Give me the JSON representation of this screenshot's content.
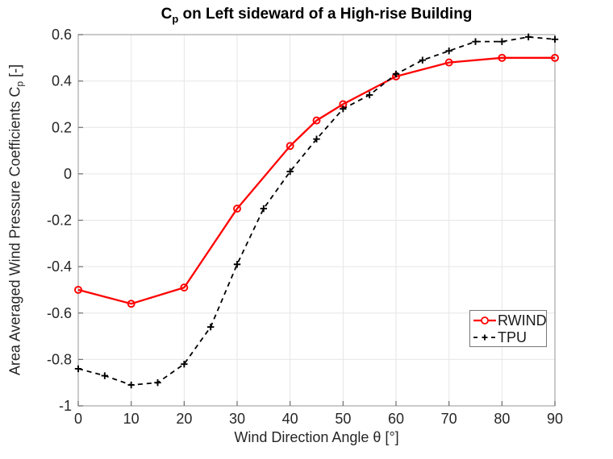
{
  "figure": {
    "title": {
      "prefix": "C",
      "sub": "p",
      "rest": " on Left sideward of a High-rise Building"
    },
    "xlabel": "Wind Direction Angle θ [°]",
    "ylabel": {
      "prefix": "Area Averaged Wind Pressure Coefficients C",
      "sub": "p",
      "suffix": " [-]"
    }
  },
  "chart_data": {
    "type": "line",
    "title": "C_p on Left sideward of a High-rise Building",
    "xlabel": "Wind Direction Angle θ [°]",
    "ylabel": "Area Averaged Wind Pressure Coefficients C_p [-]",
    "xlim": [
      0,
      90
    ],
    "ylim": [
      -1,
      0.6
    ],
    "xticks": [
      0,
      10,
      20,
      30,
      40,
      50,
      60,
      70,
      80,
      90
    ],
    "xtick_labels": [
      "0",
      "10",
      "20",
      "30",
      "40",
      "50",
      "60",
      "70",
      "80",
      "90"
    ],
    "yticks": [
      0.6,
      0.4,
      0.2,
      0,
      -0.2,
      -0.4,
      -0.6,
      -0.8,
      -1
    ],
    "ytick_labels": [
      "0.6",
      "0.4",
      "0.2",
      "0",
      "-0.2",
      "-0.4",
      "-0.6",
      "-0.8",
      "-1"
    ],
    "grid": true,
    "legend_position": "inside-right-middle",
    "series": [
      {
        "name": "RWIND",
        "color": "#ff0000",
        "line": "solid",
        "marker": "circle",
        "x": [
          0,
          10,
          20,
          30,
          40,
          45,
          50,
          60,
          70,
          80,
          90
        ],
        "y": [
          -0.5,
          -0.56,
          -0.49,
          -0.15,
          0.12,
          0.23,
          0.3,
          0.42,
          0.48,
          0.5,
          0.5
        ]
      },
      {
        "name": "TPU",
        "color": "#000000",
        "line": "dashed",
        "marker": "plus",
        "x": [
          0,
          5,
          10,
          15,
          20,
          25,
          30,
          35,
          40,
          45,
          50,
          55,
          60,
          65,
          70,
          75,
          80,
          85,
          90
        ],
        "y": [
          -0.84,
          -0.87,
          -0.91,
          -0.9,
          -0.82,
          -0.66,
          -0.39,
          -0.15,
          0.01,
          0.15,
          0.28,
          0.34,
          0.43,
          0.49,
          0.53,
          0.57,
          0.57,
          0.59,
          0.58
        ]
      }
    ]
  },
  "colors": {
    "background": "#ffffff",
    "grid": "#e6e6e6",
    "axis_box": "#a6a6a6",
    "tick": "#6e6e6e",
    "tick_label": "#262626",
    "rwind_red": "#ff0000",
    "tpu_black": "#000000",
    "legend_border": "#777777"
  }
}
